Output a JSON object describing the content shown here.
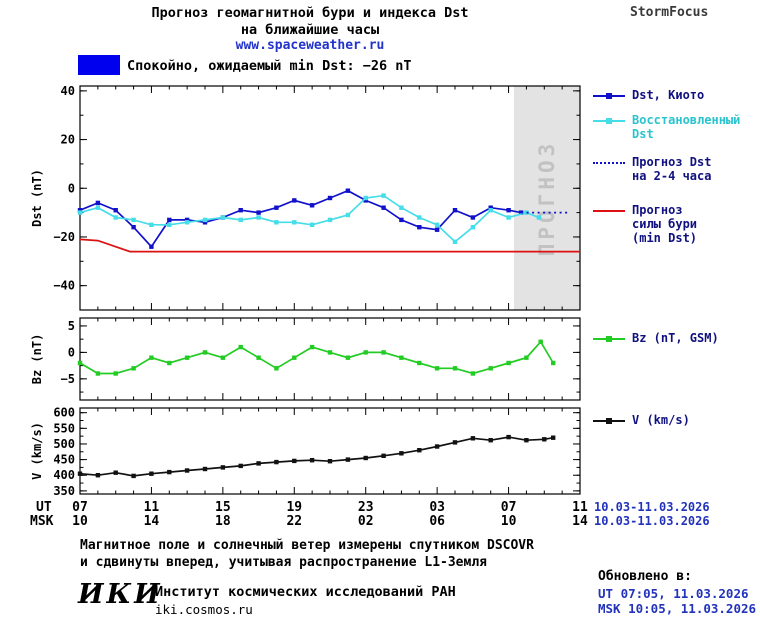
{
  "header": {
    "title_line1": "Прогноз геомагнитной бури и индекса Dst",
    "title_line2": "на ближайшие часы",
    "website": "www.spaceweather.ru",
    "brand": "StormFocus"
  },
  "status": {
    "label": "Спокойно, ожидаемый min Dst: −26 nT",
    "swatch_color": "#0000ee"
  },
  "legend": {
    "items": [
      {
        "label": "Dst, Киото",
        "color": "#1111cc",
        "text_color": "#101080",
        "style": "solid-marker"
      },
      {
        "label": "Восстановленный Dst",
        "color": "#44dde8",
        "text_color": "#2ac4ce",
        "style": "solid-marker"
      },
      {
        "label": "Прогноз Dst на 2-4 часа",
        "color": "#1111cc",
        "text_color": "#101080",
        "style": "dotted"
      },
      {
        "label": "Прогноз силы бури (min Dst)",
        "color": "#dd1111",
        "text_color": "#101080",
        "style": "solid"
      },
      {
        "label": "Bz (nT, GSM)",
        "color": "#22cc22",
        "text_color": "#101080",
        "style": "solid-marker"
      },
      {
        "label": "V (km/s)",
        "color": "#111111",
        "text_color": "#101080",
        "style": "solid-marker"
      }
    ]
  },
  "axis": {
    "ut_label": "UT",
    "msk_label": "MSK",
    "ut_ticks": [
      "07",
      "11",
      "15",
      "19",
      "23",
      "03",
      "07",
      "11"
    ],
    "msk_ticks": [
      "10",
      "14",
      "18",
      "22",
      "02",
      "06",
      "10",
      "14"
    ],
    "date_range": "10.03-11.03.2026"
  },
  "footer": {
    "note_line1": "Магнитное поле и солнечный ветер измерены спутником DSCOVR",
    "note_line2": "и сдвинуты вперед, учитывая распространение L1-Земля",
    "logo": "ИКИ",
    "institute": "Институт космических исследований РАН",
    "site": "iki.cosmos.ru",
    "updated_label": "Обновлено в:",
    "updated_ut": "UT  07:05, 11.03.2026",
    "updated_msk": "MSK 10:05, 11.03.2026"
  },
  "chart_data": [
    {
      "type": "line",
      "name": "dst-panel",
      "ylabel": "Dst (nT)",
      "ylim": [
        -50,
        42
      ],
      "yticks": [
        40,
        20,
        0,
        -20,
        -40
      ],
      "ytick_minor": 10,
      "xlim": [
        7,
        35
      ],
      "xticks_hours": [
        7,
        11,
        15,
        19,
        23,
        27,
        31,
        35
      ],
      "forecast_region": {
        "x_start": 31.3,
        "label": "ПРОГНОЗ",
        "fill": "#e3e3e3",
        "text_color": "#c2c2c2"
      },
      "series": [
        {
          "name": "Dst, Киото",
          "color": "#1111cc",
          "marker": "square",
          "x": [
            7,
            8,
            9,
            10,
            11,
            12,
            13,
            14,
            15,
            16,
            17,
            18,
            19,
            20,
            21,
            22,
            23,
            24,
            25,
            26,
            27,
            28,
            29,
            30,
            31,
            31.7
          ],
          "y": [
            -9,
            -6,
            -9,
            -16,
            -24,
            -13,
            -13,
            -14,
            -12,
            -9,
            -10,
            -8,
            -5,
            -7,
            -4,
            -1,
            -5,
            -8,
            -13,
            -16,
            -17,
            -9,
            -12,
            -8,
            -9,
            -10
          ]
        },
        {
          "name": "Восстановленный Dst",
          "color": "#44dde8",
          "marker": "square",
          "x": [
            7,
            8,
            9,
            10,
            11,
            12,
            13,
            14,
            15,
            16,
            17,
            18,
            19,
            20,
            21,
            22,
            23,
            24,
            25,
            26,
            27,
            28,
            29,
            30,
            31,
            32,
            32.7
          ],
          "y": [
            -10,
            -8,
            -12,
            -13,
            -15,
            -15,
            -14,
            -13,
            -12,
            -13,
            -12,
            -14,
            -14,
            -15,
            -13,
            -11,
            -4,
            -3,
            -8,
            -12,
            -15,
            -22,
            -16,
            -9,
            -12,
            -10,
            -12
          ]
        },
        {
          "name": "Прогноз Dst на 2-4 часа",
          "color": "#1111cc",
          "style": "dotted",
          "x": [
            31.7,
            34.3
          ],
          "y": [
            -10,
            -10
          ]
        },
        {
          "name": "Прогноз силы бури (min Dst)",
          "color": "#dd1111",
          "x": [
            7,
            8,
            9.8,
            35
          ],
          "y": [
            -21,
            -21.5,
            -26,
            -26
          ]
        }
      ]
    },
    {
      "type": "line",
      "name": "bz-panel",
      "ylabel": "Bz (nT)",
      "ylim": [
        -9,
        6.5
      ],
      "yticks": [
        5,
        0,
        -5
      ],
      "ytick_minor": 2.5,
      "xlim": [
        7,
        35
      ],
      "xticks_hours": [
        7,
        11,
        15,
        19,
        23,
        27,
        31,
        35
      ],
      "series": [
        {
          "name": "Bz (nT, GSM)",
          "color": "#22cc22",
          "marker": "square",
          "x": [
            7,
            8,
            9,
            10,
            11,
            12,
            13,
            14,
            15,
            16,
            17,
            18,
            19,
            20,
            21,
            22,
            23,
            24,
            25,
            26,
            27,
            28,
            29,
            30,
            31,
            32,
            32.8,
            33.5
          ],
          "y": [
            -2,
            -4,
            -4,
            -3,
            -1,
            -2,
            -1,
            0,
            -1,
            1,
            -1,
            -3,
            -1,
            1,
            0,
            -1,
            0,
            0,
            -1,
            -2,
            -3,
            -3,
            -4,
            -3,
            -2,
            -1,
            2,
            -2
          ]
        }
      ]
    },
    {
      "type": "line",
      "name": "v-panel",
      "ylabel": "V (km/s)",
      "ylim": [
        340,
        615
      ],
      "yticks": [
        600,
        550,
        500,
        450,
        400,
        350
      ],
      "ytick_minor": 25,
      "xlim": [
        7,
        35
      ],
      "xticks_hours": [
        7,
        11,
        15,
        19,
        23,
        27,
        31,
        35
      ],
      "series": [
        {
          "name": "V (km/s)",
          "color": "#111111",
          "marker": "square",
          "x": [
            7,
            8,
            9,
            10,
            11,
            12,
            13,
            14,
            15,
            16,
            17,
            18,
            19,
            20,
            21,
            22,
            23,
            24,
            25,
            26,
            27,
            28,
            29,
            30,
            31,
            32,
            33,
            33.5
          ],
          "y": [
            405,
            400,
            408,
            398,
            405,
            410,
            415,
            420,
            425,
            430,
            438,
            442,
            446,
            448,
            445,
            450,
            455,
            462,
            470,
            480,
            492,
            505,
            518,
            512,
            522,
            512,
            515,
            520
          ]
        }
      ]
    }
  ]
}
